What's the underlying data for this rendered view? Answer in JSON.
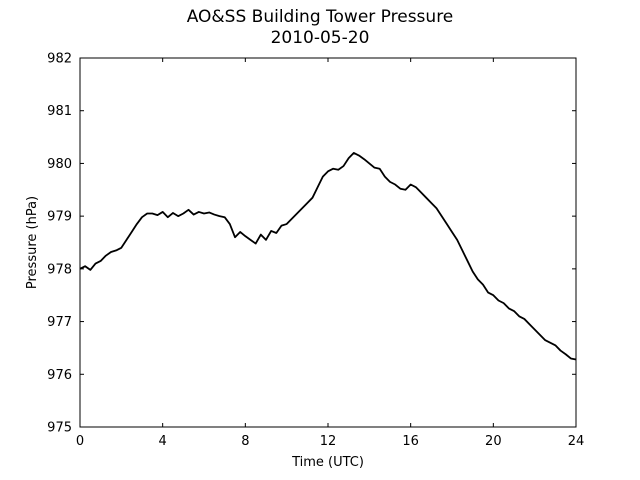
{
  "chart_data": {
    "type": "line",
    "title": "AO&SS Building Tower Pressure",
    "subtitle": "2010-05-20",
    "xlabel": "Time (UTC)",
    "ylabel": "Pressure (hPa)",
    "xlim": [
      0,
      24
    ],
    "ylim": [
      975,
      982
    ],
    "xticks": [
      0,
      4,
      8,
      12,
      16,
      20,
      24
    ],
    "yticks": [
      975,
      976,
      977,
      978,
      979,
      980,
      981,
      982
    ],
    "grid": false,
    "line_color": "#000000",
    "series": [
      {
        "x": [
          0,
          0.25,
          0.5,
          0.75,
          1.0,
          1.25,
          1.5,
          1.75,
          2.0,
          2.25,
          2.5,
          2.75,
          3.0,
          3.25,
          3.5,
          3.75,
          4.0,
          4.25,
          4.5,
          4.75,
          5.0,
          5.25,
          5.5,
          5.75,
          6.0,
          6.25,
          6.5,
          6.75,
          7.0,
          7.25,
          7.5,
          7.75,
          8.0,
          8.25,
          8.5,
          8.75,
          9.0,
          9.25,
          9.5,
          9.75,
          10.0,
          10.25,
          10.5,
          10.75,
          11.0,
          11.25,
          11.5,
          11.75,
          12.0,
          12.25,
          12.5,
          12.75,
          13.0,
          13.25,
          13.5,
          13.75,
          14.0,
          14.25,
          14.5,
          14.75,
          15.0,
          15.25,
          15.5,
          15.75,
          16.0,
          16.25,
          16.5,
          16.75,
          17.0,
          17.25,
          17.5,
          17.75,
          18.0,
          18.25,
          18.5,
          18.75,
          19.0,
          19.25,
          19.5,
          19.75,
          20.0,
          20.25,
          20.5,
          20.75,
          21.0,
          21.25,
          21.5,
          21.75,
          22.0,
          22.25,
          22.5,
          22.75,
          23.0,
          23.25,
          23.5,
          23.75,
          24.0
        ],
        "y": [
          978.0,
          978.05,
          977.98,
          978.1,
          978.15,
          978.25,
          978.32,
          978.35,
          978.4,
          978.55,
          978.7,
          978.85,
          978.98,
          979.05,
          979.05,
          979.02,
          979.08,
          978.98,
          979.06,
          979.0,
          979.05,
          979.12,
          979.03,
          979.08,
          979.05,
          979.07,
          979.03,
          979.0,
          978.98,
          978.85,
          978.6,
          978.7,
          978.62,
          978.55,
          978.48,
          978.65,
          978.55,
          978.72,
          978.68,
          978.82,
          978.85,
          978.95,
          979.05,
          979.15,
          979.25,
          979.35,
          979.55,
          979.75,
          979.85,
          979.9,
          979.88,
          979.95,
          980.1,
          980.2,
          980.15,
          980.08,
          980.0,
          979.92,
          979.9,
          979.75,
          979.65,
          979.6,
          979.52,
          979.5,
          979.6,
          979.55,
          979.45,
          979.35,
          979.25,
          979.15,
          979.0,
          978.85,
          978.7,
          978.55,
          978.35,
          978.15,
          977.95,
          977.8,
          977.7,
          977.55,
          977.5,
          977.4,
          977.35,
          977.25,
          977.2,
          977.1,
          977.05,
          976.95,
          976.85,
          976.75,
          976.65,
          976.6,
          976.55,
          976.45,
          976.38,
          976.3,
          976.28
        ]
      }
    ]
  }
}
